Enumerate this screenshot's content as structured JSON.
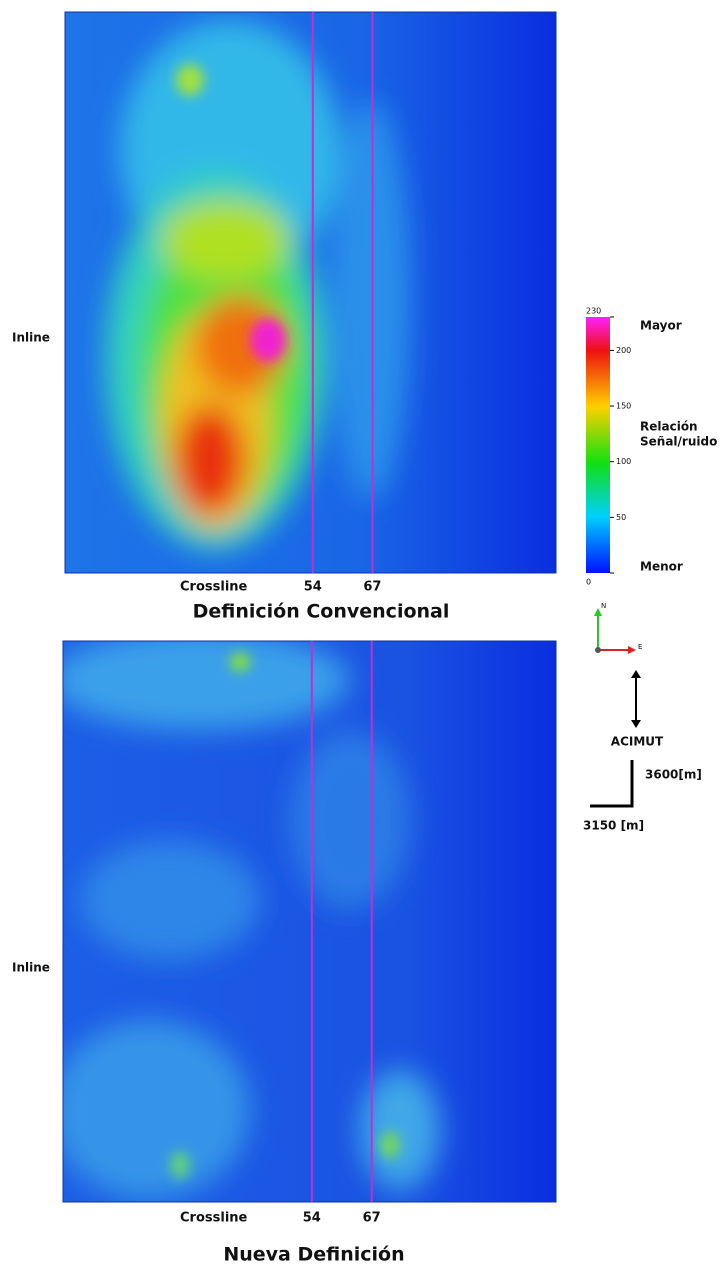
{
  "panels": [
    {
      "title": "Definición Convencional",
      "y_label": "Inline",
      "x_label": "Crossline",
      "xlim": [
        0,
        107
      ],
      "markers": [
        54,
        67
      ]
    },
    {
      "title": "Nueva Definición",
      "y_label": "Inline",
      "x_label": "Crossline",
      "xlim": [
        0,
        107
      ],
      "markers": [
        54,
        67
      ]
    }
  ],
  "colorbar": {
    "ylim": [
      0,
      230
    ],
    "yticks": [
      0,
      50,
      100,
      150,
      200,
      230
    ],
    "high_label": "Mayor",
    "mid_label_1": "Relación",
    "mid_label_2": "Señal/ruido",
    "low_label": "Menor"
  },
  "orientation": {
    "north": "N",
    "east": "E",
    "azimuth": "ACIMUT",
    "height": "3600[m]",
    "width": "3150 [m]"
  }
}
